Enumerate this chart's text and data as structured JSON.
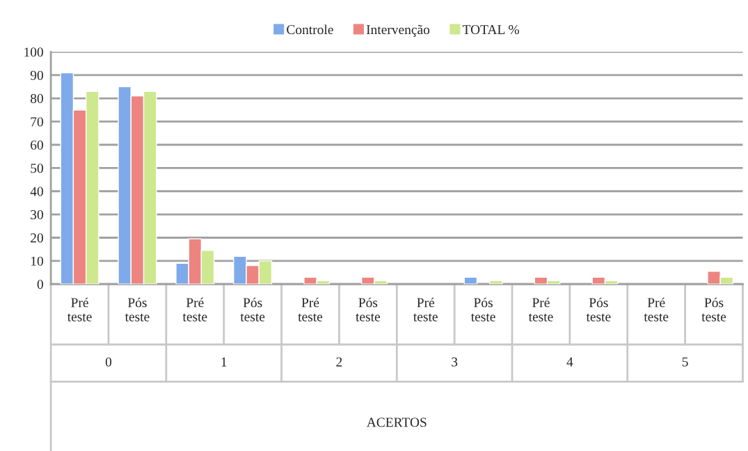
{
  "chart_data": {
    "type": "bar",
    "categories": [
      "Pré\nteste",
      "Pós\nteste",
      "Pré\nteste",
      "Pós\nteste",
      "Pré\nteste",
      "Pós\nteste",
      "Pré\nteste",
      "Pós\nteste",
      "Pré\nteste",
      "Pós\nteste",
      "Pré\nteste",
      "Pós\nteste"
    ],
    "series": [
      {
        "name": "Controle",
        "color": "#7eaaea",
        "values": [
          91,
          85,
          9,
          12,
          null,
          null,
          null,
          3,
          null,
          null,
          null,
          null
        ]
      },
      {
        "name": "Intervenção",
        "color": "#ee8480",
        "values": [
          75,
          81,
          19.5,
          8,
          3,
          3,
          null,
          null,
          3,
          3,
          null,
          5.5
        ]
      },
      {
        "name": "TOTAL %",
        "color": "#cde88e",
        "values": [
          83,
          83,
          14.5,
          10,
          1.5,
          1.5,
          null,
          1.5,
          1.5,
          1.5,
          null,
          3
        ]
      }
    ],
    "annotations": [
      "0",
      "1",
      "2",
      "3",
      "4",
      "5",
      "ACERTOS"
    ],
    "ylim": [
      0,
      100
    ],
    "yticks": [
      0,
      10,
      20,
      30,
      40,
      50,
      60,
      70,
      80,
      90,
      100
    ],
    "grid": "y",
    "legend": "top"
  }
}
